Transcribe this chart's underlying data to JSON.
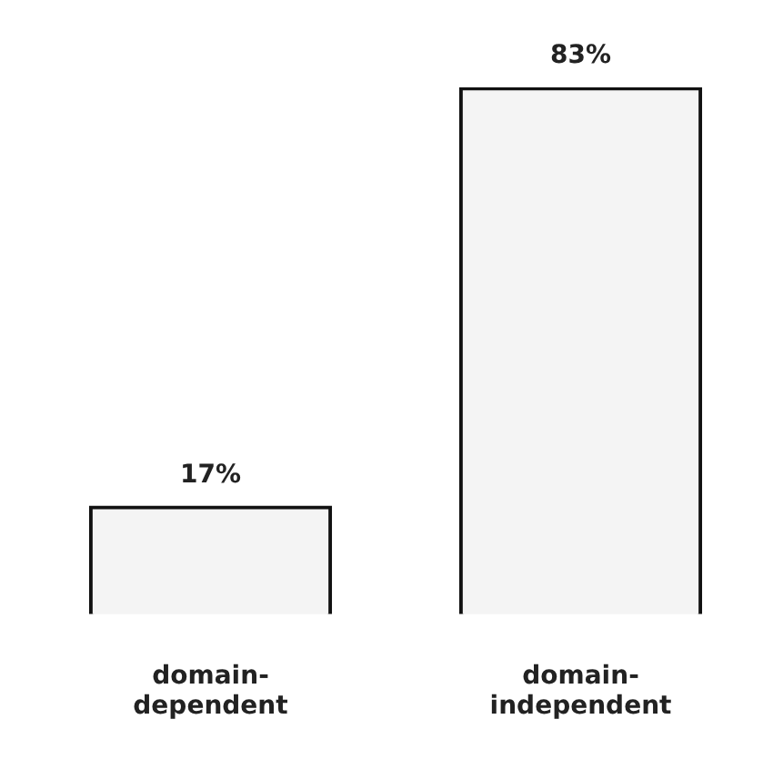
{
  "chart_data": {
    "type": "bar",
    "categories": [
      "domain-dependent",
      "domain-independent"
    ],
    "values": [
      17,
      83
    ],
    "value_labels": [
      "17%",
      "83%"
    ],
    "color": "#f4f4f4"
  }
}
